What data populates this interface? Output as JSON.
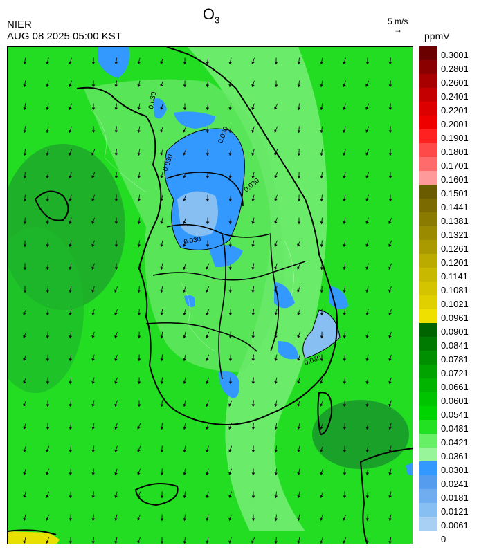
{
  "header": {
    "title_main": "O",
    "title_sub": "3",
    "agency": "NIER",
    "datetime": "AUG 08 2025 05:00 KST",
    "vector_scale_label": "5 m/s",
    "vector_arrow_glyph": "→",
    "unit": "ppmV"
  },
  "map": {
    "region": "Korean Peninsula",
    "contour_label": "0.030",
    "contour_labels": [
      "0.030",
      "0.030",
      "0.030",
      "0.030",
      "0.030",
      "0.030"
    ],
    "wind_direction_prevailing": "south-southeast",
    "base_color": "#22dd22"
  },
  "colorbar": {
    "labels": [
      "0.3001",
      "0.2801",
      "0.2601",
      "0.2401",
      "0.2201",
      "0.2001",
      "0.1901",
      "0.1801",
      "0.1701",
      "0.1601",
      "0.1501",
      "0.1441",
      "0.1381",
      "0.1321",
      "0.1261",
      "0.1201",
      "0.1141",
      "0.1081",
      "0.1021",
      "0.0961",
      "0.0901",
      "0.0841",
      "0.0781",
      "0.0721",
      "0.0661",
      "0.0601",
      "0.0541",
      "0.0481",
      "0.0421",
      "0.0361",
      "0.0301",
      "0.0241",
      "0.0181",
      "0.0121",
      "0.0061",
      "0"
    ],
    "colors": [
      "#6a0000",
      "#8a0000",
      "#a80000",
      "#c40000",
      "#dc0000",
      "#ee0000",
      "#ff2020",
      "#ff4a4a",
      "#ff6a6a",
      "#ff9a9a",
      "#6a5a00",
      "#7a6a00",
      "#8a7a00",
      "#9a8a00",
      "#aa9a00",
      "#bbaa00",
      "#c8b800",
      "#d4c400",
      "#e0d000",
      "#f0e000",
      "#006400",
      "#007a00",
      "#008f00",
      "#00a300",
      "#00b400",
      "#00c400",
      "#00d400",
      "#22e022",
      "#66f066",
      "#99f599",
      "#3399ff",
      "#559cee",
      "#6fadf0",
      "#88bff2",
      "#a8d0f5"
    ]
  }
}
